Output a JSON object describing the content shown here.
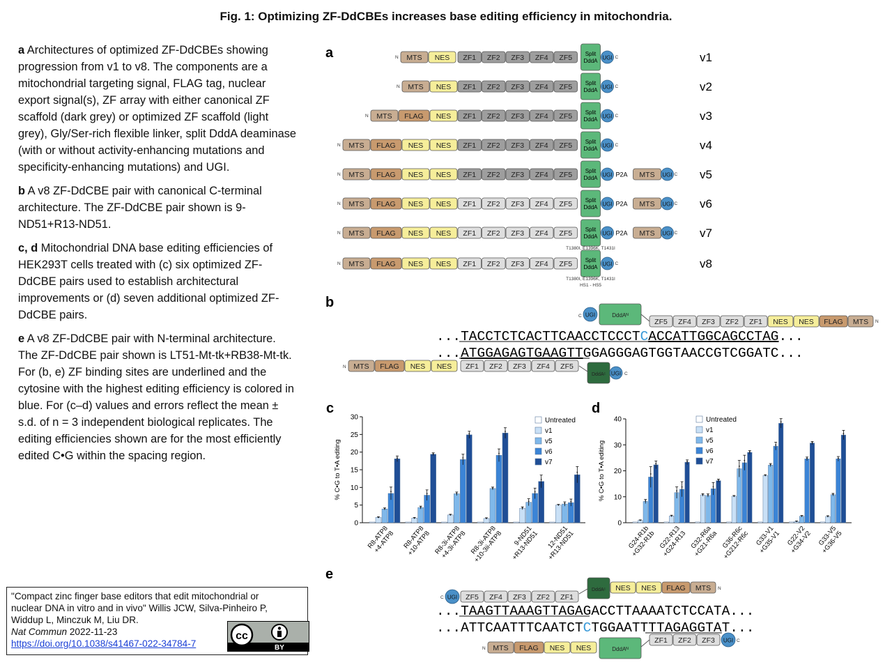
{
  "title": "Fig. 1: Optimizing ZF-DdCBEs increases base editing efficiency in mitochondria.",
  "legend": [
    {
      "label": "a",
      "text": " Architectures of optimized ZF-DdCBEs showing progression from v1 to v8. The components are a mitochondrial targeting signal, FLAG tag, nuclear export signal(s), ZF array with either canonical ZF scaffold (dark grey) or optimized ZF scaffold (light grey), Gly/Ser-rich flexible linker, split DddA deaminase (with or without activity-enhancing mutations and specificity-enhancing mutations) and UGI."
    },
    {
      "label": "b",
      "text": " A v8 ZF-DdCBE pair with canonical C-terminal architecture. The ZF-DdCBE pair shown is 9-ND51+R13-ND51."
    },
    {
      "label": "c, d",
      "text": " Mitochondrial DNA base editing efficiencies of HEK293T cells treated with (c) six optimized ZF-DdCBE pairs used to establish architectural improvements or (d) seven additional optimized ZF-DdCBE pairs."
    },
    {
      "label": "e",
      "text": " A v8 ZF-DdCBE pair with N-terminal architecture. The ZF-DdCBE pair shown is LT51-Mt-tk+RB38-Mt-tk. For (b, e) ZF binding sites are underlined and the cytosine with the highest editing efficiency is colored in blue. For (c–d) values and errors reflect the mean ± s.d. of n = 3 independent biological replicates. The editing efficiencies shown are for the most efficiently edited C•G within the spacing region."
    }
  ],
  "citation": {
    "line1": "\"Compact zinc finger base editors that edit mitochondrial or",
    "line2": "nuclear DNA in vitro and in vivo\" Willis JCW, Silva-Pinheiro P,",
    "line3": "Widdup L, Minczuk M, Liu DR.",
    "journal": "Nat Commun",
    "date": " 2022-11-23",
    "doi": "https://doi.org/10.1038/s41467-022-34784-7",
    "license_top": "cc",
    "license_bottom": "BY"
  },
  "panel_labels": {
    "a": "a",
    "b": "b",
    "c": "c",
    "d": "d",
    "e": "e"
  },
  "colors": {
    "mts": "#c8ad92",
    "flag": "#c89a6e",
    "nes": "#f6ee9a",
    "zf_dark": "#9e9e9e",
    "zf_light": "#dedede",
    "ddda": "#5cb87a",
    "ddda_dark": "#2e6b3e",
    "ugi": "#4a90c8",
    "series": [
      "#ffffff",
      "#c9e0f6",
      "#7fb8ea",
      "#3b84d6",
      "#1f4e96"
    ],
    "edit": "#3a9ad9"
  },
  "panel_a": {
    "versions": [
      {
        "label": "v1",
        "parts": [
          "MTS",
          "NES"
        ],
        "zf_dark": true,
        "tail": false,
        "note": []
      },
      {
        "label": "v2",
        "parts": [
          "MTS",
          "NES"
        ],
        "zf_dark": true,
        "tail": false,
        "note": []
      },
      {
        "label": "v3",
        "parts": [
          "MTS",
          "FLAG",
          "NES"
        ],
        "zf_dark": true,
        "tail": false,
        "note": []
      },
      {
        "label": "v4",
        "parts": [
          "MTS",
          "FLAG",
          "NES",
          "NES"
        ],
        "zf_dark": true,
        "tail": false,
        "note": []
      },
      {
        "label": "v5",
        "parts": [
          "MTS",
          "FLAG",
          "NES",
          "NES"
        ],
        "zf_dark": true,
        "tail": true,
        "note": []
      },
      {
        "label": "v6",
        "parts": [
          "MTS",
          "FLAG",
          "NES",
          "NES"
        ],
        "zf_dark": false,
        "tail": true,
        "note": []
      },
      {
        "label": "v7",
        "parts": [
          "MTS",
          "FLAG",
          "NES",
          "NES"
        ],
        "zf_dark": false,
        "tail": true,
        "note": [
          "T1380I, E1396K, T1431I"
        ]
      },
      {
        "label": "v8",
        "parts": [
          "MTS",
          "FLAG",
          "NES",
          "NES"
        ],
        "zf_dark": false,
        "tail": false,
        "note": [
          "T1380I, E1396K, T1431I",
          "HS1 - HS5"
        ]
      }
    ],
    "zf_labels": [
      "ZF1",
      "ZF2",
      "ZF3",
      "ZF4",
      "ZF5"
    ],
    "split_label": [
      "Split",
      "DddA"
    ],
    "ugi_label": "UGI",
    "p2a_label": "P2A",
    "mts_label": "MTS",
    "n_label": "N",
    "c_label": "C"
  },
  "panel_b": {
    "top_zf": [
      "ZF5",
      "ZF4",
      "ZF3",
      "ZF2",
      "ZF1"
    ],
    "top_tail": [
      "NES",
      "NES",
      "FLAG",
      "MTS"
    ],
    "top_ddda": "DddAᴺ",
    "seq1_pre": "...TACCTCTCACTTCAACCTCCCT",
    "seq1_edit": "C",
    "seq1_under": "ACCATTGGCAGCCTAG",
    "seq1_post": "...",
    "seq2_pre": "...",
    "seq2_under": "ATGGAGAGTGAAGTT",
    "seq2_post": "GGAGGGAGTGGTAACCGTCGGATC...",
    "bottom_parts": [
      "MTS",
      "FLAG",
      "NES",
      "NES"
    ],
    "bottom_zf": [
      "ZF1",
      "ZF2",
      "ZF3",
      "ZF4",
      "ZF5"
    ],
    "bottom_ddda": "DddAᶜ"
  },
  "panel_e": {
    "top_zf": [
      "ZF5",
      "ZF4",
      "ZF3",
      "ZF2",
      "ZF1"
    ],
    "top_ddda": "DddAᶜ",
    "top_tail": [
      "NES",
      "NES",
      "FLAG",
      "MTS"
    ],
    "seq1_pre": "...",
    "seq1_under": "TAAGTTAAAGTTAGA",
    "seq1_post": "GACCTTAAAATCTCCATA...",
    "seq2_pre": "...ATTCAATTTCAATCT",
    "seq2_edit": "C",
    "seq2_mid": "TGGAATTT",
    "seq2_under": "TAGAGGTAT",
    "seq2_post": "...",
    "bottom_parts": [
      "MTS",
      "FLAG",
      "NES",
      "NES"
    ],
    "bottom_ddda": "DddAᴺ",
    "bottom_zf": [
      "ZF1",
      "ZF2",
      "ZF3"
    ]
  },
  "chart_data": [
    {
      "panel": "c",
      "type": "bar",
      "ylabel": "% C•G to T•A editing",
      "ylim": [
        0,
        30
      ],
      "yticks": [
        0,
        5,
        10,
        15,
        20,
        25,
        30
      ],
      "categories": [
        "R8-ATP8 +4-ATP8",
        "R8-ATP8 +10-ATP8",
        "R8-3i-ATP8 +4-3i-ATP8",
        "R8-3i-ATP8 +10-3ii-ATP8",
        "9-ND51 +R13-ND51",
        "12-ND51 +R13-ND51"
      ],
      "legend_position": "top-right",
      "series": [
        {
          "name": "Untreated",
          "values": [
            0.2,
            0.2,
            0.2,
            0.2,
            0.2,
            0.2
          ]
        },
        {
          "name": "v1",
          "values": [
            1.5,
            1.3,
            2.2,
            1.2,
            4.1,
            5.0
          ]
        },
        {
          "name": "v5",
          "values": [
            3.9,
            4.3,
            8.2,
            9.7,
            5.8,
            5.3
          ]
        },
        {
          "name": "v6",
          "values": [
            8.3,
            7.8,
            17.9,
            19.1,
            8.3,
            5.7
          ]
        },
        {
          "name": "v7",
          "values": [
            18.1,
            19.4,
            24.9,
            25.4,
            11.7,
            13.6
          ]
        }
      ],
      "errors": [
        [
          0.1,
          0.1,
          0.1,
          0.1,
          0.1,
          0.1
        ],
        [
          0.2,
          0.2,
          0.2,
          0.2,
          0.4,
          0.2
        ],
        [
          0.3,
          0.4,
          0.5,
          0.4,
          1.0,
          0.6
        ],
        [
          1.8,
          1.5,
          1.5,
          1.8,
          1.5,
          1.0
        ],
        [
          0.8,
          0.4,
          1.0,
          1.5,
          1.8,
          2.3
        ]
      ]
    },
    {
      "panel": "d",
      "type": "bar",
      "ylabel": "% C•G to T•A editing",
      "ylim": [
        0,
        40
      ],
      "yticks": [
        0,
        10,
        20,
        30,
        40
      ],
      "categories": [
        "G24-R1b +G32-R1b",
        "G22-R13 +G24-R13",
        "G32-R6a +G21-R6a",
        "G36-R6c +G212-R6c",
        "G33-V1 +G35-V1",
        "G22-V2 +G34-V2",
        "G33-V5 +G36-V5"
      ],
      "legend_position": "top-right",
      "series": [
        {
          "name": "Untreated",
          "values": [
            0.3,
            0.3,
            0.3,
            0.3,
            0.3,
            0.3,
            0.3
          ]
        },
        {
          "name": "v1",
          "values": [
            0.9,
            2.6,
            10.7,
            10.2,
            18.2,
            0.5,
            2.4
          ]
        },
        {
          "name": "v5",
          "values": [
            8.2,
            11.6,
            10.5,
            20.8,
            22.2,
            2.5,
            10.8
          ]
        },
        {
          "name": "v6",
          "values": [
            17.6,
            12.9,
            13.1,
            23.1,
            29.5,
            24.6,
            24.6
          ]
        },
        {
          "name": "v7",
          "values": [
            22.3,
            23.3,
            16.2,
            27.1,
            38.3,
            30.7,
            33.8
          ]
        }
      ],
      "errors": [
        [
          0.1,
          0.1,
          0.1,
          0.1,
          0.1,
          0.1,
          0.1
        ],
        [
          0.2,
          0.3,
          0.5,
          0.3,
          0.3,
          0.2,
          0.3
        ],
        [
          0.8,
          2.2,
          0.6,
          3.2,
          0.6,
          0.3,
          0.5
        ],
        [
          4.0,
          2.9,
          2.4,
          2.9,
          1.5,
          0.7,
          0.9
        ],
        [
          1.5,
          0.9,
          0.6,
          0.7,
          1.8,
          0.6,
          1.8
        ]
      ]
    }
  ]
}
